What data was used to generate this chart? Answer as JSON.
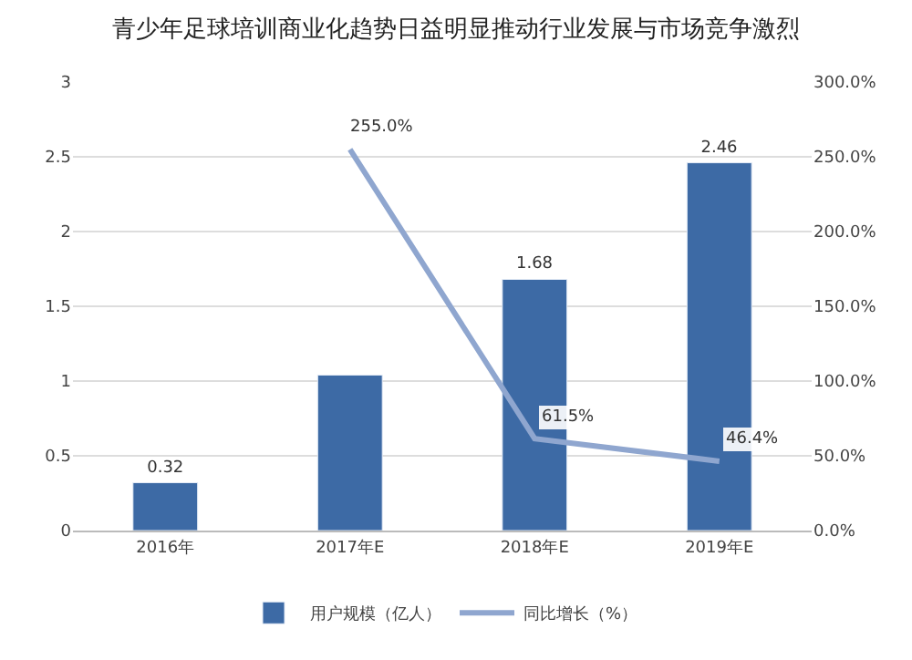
{
  "chart_data": {
    "type": "bar",
    "title": "青少年足球培训商业化趋势日益明显推动行业发展与市场竞争激烈",
    "categories": [
      "2016年",
      "2017年E",
      "2018年E",
      "2019年E"
    ],
    "series": [
      {
        "name": "用户规模（亿人）",
        "color": "#3d6aa5",
        "values": [
          0.32,
          1.04,
          1.68,
          2.46
        ],
        "value_labels": [
          "0.32",
          null,
          "1.68",
          "2.46"
        ]
      },
      {
        "name": "同比增长（%）",
        "type": "line",
        "axis": "y2",
        "color": "#8fa6cf",
        "values": [
          null,
          255.0,
          61.5,
          46.4
        ],
        "value_labels": [
          null,
          "255.0%",
          "61.5%",
          "46.4%"
        ]
      }
    ],
    "ylim": [
      0,
      3
    ],
    "yticks": [
      0,
      0.5,
      1,
      1.5,
      2,
      2.5,
      3
    ],
    "y2lim": [
      0,
      300
    ],
    "y2ticks": [
      {
        "value": 0,
        "label": "0.0%"
      },
      {
        "value": 50,
        "label": "50.0%"
      },
      {
        "value": 100,
        "label": "100.0%"
      },
      {
        "value": 150,
        "label": "150.0%"
      },
      {
        "value": 200,
        "label": "200.0%"
      },
      {
        "value": 250,
        "label": "250.0%"
      },
      {
        "value": 300,
        "label": "300.0%"
      }
    ],
    "grid": "y",
    "legend": "bottom",
    "marker": "none",
    "line_style": "solid"
  }
}
